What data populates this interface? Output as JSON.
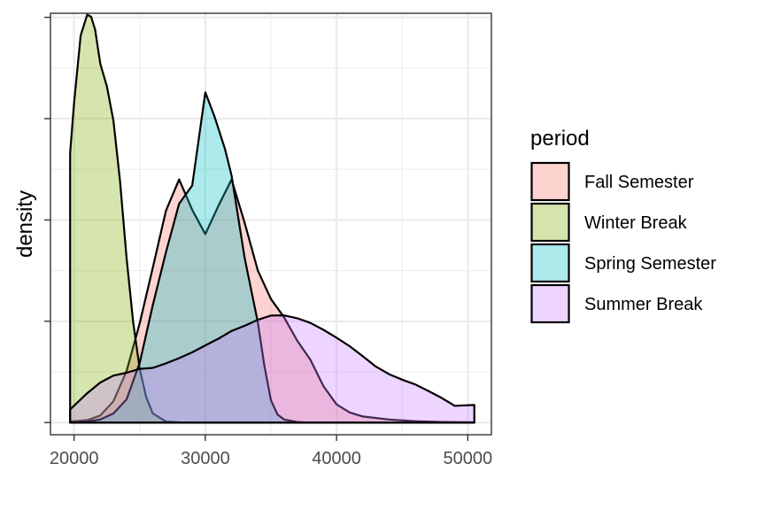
{
  "chart_data": {
    "type": "area",
    "subtype": "density",
    "xlabel": "",
    "ylabel": "density",
    "xlim": [
      18200,
      51800
    ],
    "ylim": [
      -6e-06,
      0.000202
    ],
    "x_ticks": [
      20000,
      30000,
      40000,
      50000
    ],
    "x_tick_labels": [
      "20000",
      "30000",
      "40000",
      "50000"
    ],
    "y_ticks": [
      0,
      5e-05,
      0.0001,
      0.00015,
      0.0002
    ],
    "y_tick_labels_shown": false,
    "grid": true,
    "legend": {
      "title": "period",
      "position": "right"
    },
    "series": [
      {
        "name": "Fall Semester",
        "color": "#F8766D",
        "x": [
          19700,
          21000,
          22000,
          23000,
          24000,
          25000,
          26000,
          27000,
          28000,
          29000,
          30000,
          31000,
          32000,
          33000,
          34000,
          35000,
          36000,
          37000,
          38000,
          39000,
          40000,
          41000,
          42000,
          44000,
          46000,
          48000,
          50500
        ],
        "y": [
          5e-07,
          1.2e-06,
          3.5e-06,
          1.05e-05,
          2.55e-05,
          4.9e-05,
          7.65e-05,
          0.0001045,
          0.00012,
          0.000105,
          9.3e-05,
          0.000107,
          0.00012,
          9.85e-05,
          7.5e-05,
          6.1e-05,
          5.2e-05,
          4.05e-05,
          3.1e-05,
          1.8e-05,
          9e-06,
          5e-06,
          3e-06,
          1.5e-06,
          7e-07,
          3e-07,
          1e-07
        ]
      },
      {
        "name": "Winter Break",
        "color": "#7CAE00",
        "x": [
          19700,
          20000,
          20500,
          21000,
          21300,
          21600,
          22000,
          22500,
          23000,
          23500,
          24000,
          24500,
          25000,
          25500,
          26000,
          27000,
          28000,
          29000,
          30000,
          32000,
          35000,
          40000,
          45000,
          50500
        ],
        "y": [
          0.000133,
          0.000158,
          0.000191,
          0.0002013,
          0.0002003,
          0.000194,
          0.000177,
          0.000166,
          0.000149,
          0.000119,
          8.1e-05,
          4.95e-05,
          2.65e-05,
          1.25e-05,
          4.5e-06,
          5e-07,
          1e-07,
          0.0,
          0.0,
          0.0,
          0.0,
          0.0,
          0.0,
          0.0
        ]
      },
      {
        "name": "Spring Semester",
        "color": "#00BFC4",
        "x": [
          19700,
          21000,
          22000,
          23000,
          24000,
          25000,
          26000,
          27000,
          28000,
          29000,
          30000,
          30700,
          31500,
          32000,
          33000,
          34000,
          34500,
          35000,
          35500,
          36000,
          37000,
          38000,
          40000,
          45000,
          50500
        ],
        "y": [
          1e-07,
          5e-07,
          1.5e-06,
          4.5e-06,
          1.15e-05,
          2.95e-05,
          5.8e-05,
          8.4e-05,
          0.000108,
          0.000117,
          0.000163,
          0.000151,
          0.000135,
          0.000122,
          8.1e-05,
          4.95e-05,
          2.8e-05,
          1.1e-05,
          4e-06,
          1.5e-06,
          3e-07,
          0.0,
          0.0,
          0.0,
          0.0
        ]
      },
      {
        "name": "Summer Break",
        "color": "#C77CFF",
        "x": [
          19700,
          21000,
          22000,
          23000,
          24000,
          25000,
          26000,
          27000,
          28000,
          29000,
          30000,
          31000,
          32000,
          33000,
          34000,
          35000,
          36000,
          37000,
          38000,
          39000,
          40000,
          41000,
          42000,
          43000,
          44000,
          45000,
          46000,
          47000,
          48000,
          49000,
          50500
        ],
        "y": [
          6.5e-06,
          1.45e-05,
          1.98e-05,
          2.32e-05,
          2.46e-05,
          2.65e-05,
          2.7e-05,
          2.92e-05,
          3.18e-05,
          3.47e-05,
          3.81e-05,
          4.14e-05,
          4.52e-05,
          4.78e-05,
          5.07e-05,
          5.28e-05,
          5.29e-05,
          5.15e-05,
          4.92e-05,
          4.58e-05,
          4.19e-05,
          3.77e-05,
          3.27e-05,
          2.76e-05,
          2.39e-05,
          2.12e-05,
          1.88e-05,
          1.56e-05,
          1.22e-05,
          8.3e-06,
          8.7e-06
        ]
      }
    ]
  }
}
